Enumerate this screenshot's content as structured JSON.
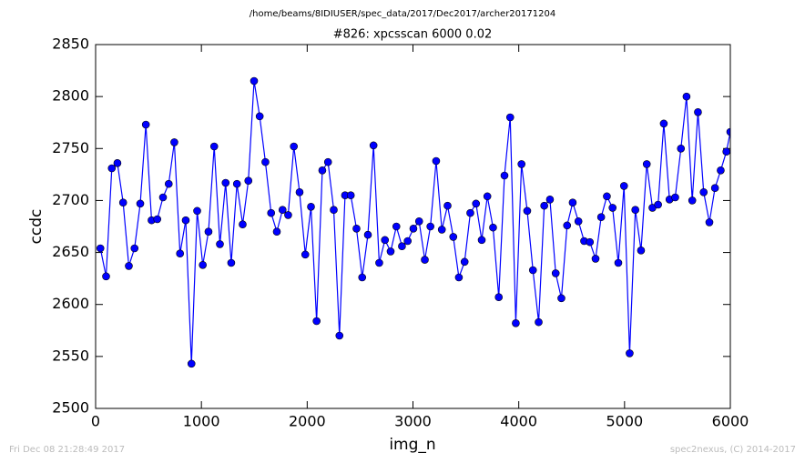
{
  "chart_data": {
    "type": "line",
    "header": "/home/beams/8IDIUSER/spec_data/2017/Dec2017/archer20171204",
    "title": "#826: xpcsscan 6000 0.02",
    "xlabel": "img_n",
    "ylabel": "ccdc",
    "footer_left": "Fri Dec 08 21:28:49 2017",
    "footer_right": "spec2nexus, (C) 2014-2017",
    "x": [
      45,
      99,
      153,
      206,
      260,
      314,
      368,
      422,
      475,
      529,
      583,
      637,
      691,
      744,
      798,
      852,
      906,
      960,
      1013,
      1067,
      1121,
      1175,
      1229,
      1282,
      1336,
      1390,
      1444,
      1498,
      1551,
      1605,
      1659,
      1713,
      1767,
      1820,
      1874,
      1928,
      1982,
      2036,
      2089,
      2143,
      2197,
      2251,
      2305,
      2358,
      2412,
      2466,
      2520,
      2574,
      2627,
      2681,
      2735,
      2789,
      2843,
      2896,
      2950,
      3004,
      3058,
      3112,
      3165,
      3219,
      3273,
      3327,
      3381,
      3434,
      3488,
      3542,
      3596,
      3650,
      3703,
      3757,
      3811,
      3865,
      3919,
      3972,
      4026,
      4080,
      4134,
      4188,
      4241,
      4295,
      4349,
      4403,
      4457,
      4510,
      4564,
      4618,
      4672,
      4726,
      4779,
      4833,
      4887,
      4941,
      4995,
      5048,
      5102,
      5156,
      5210,
      5264,
      5317,
      5371,
      5425,
      5479,
      5533,
      5586,
      5640,
      5694,
      5748,
      5802,
      5855,
      5909,
      5963,
      6000
    ],
    "series": [
      {
        "name": "ccdc",
        "color": "#0000ff",
        "values": [
          2654,
          2627,
          2731,
          2736,
          2698,
          2637,
          2654,
          2697,
          2773,
          2681,
          2682,
          2703,
          2716,
          2756,
          2649,
          2681,
          2543,
          2690,
          2638,
          2670,
          2752,
          2658,
          2717,
          2640,
          2716,
          2677,
          2719,
          2815,
          2781,
          2737,
          2688,
          2670,
          2691,
          2686,
          2752,
          2708,
          2648,
          2694,
          2584,
          2729,
          2737,
          2691,
          2570,
          2705,
          2705,
          2673,
          2626,
          2667,
          2753,
          2640,
          2662,
          2651,
          2675,
          2656,
          2661,
          2673,
          2680,
          2643,
          2675,
          2738,
          2672,
          2695,
          2665,
          2626,
          2641,
          2688,
          2697,
          2662,
          2704,
          2674,
          2607,
          2724,
          2780,
          2582,
          2735,
          2690,
          2633,
          2583,
          2695,
          2701,
          2630,
          2606,
          2676,
          2698,
          2680,
          2661,
          2660,
          2644,
          2684,
          2704,
          2693,
          2640,
          2714,
          2553,
          2691,
          2652,
          2735,
          2693,
          2696,
          2774,
          2701,
          2703,
          2750,
          2800,
          2700,
          2785,
          2708,
          2679,
          2712,
          2729,
          2747,
          2766
        ]
      }
    ],
    "xlim": [
      0,
      6000
    ],
    "xticks": [
      0,
      1000,
      2000,
      3000,
      4000,
      5000,
      6000
    ],
    "ylim": [
      2500,
      2850
    ],
    "yticks": [
      2500,
      2550,
      2600,
      2650,
      2700,
      2750,
      2800,
      2850
    ],
    "grid": false
  }
}
